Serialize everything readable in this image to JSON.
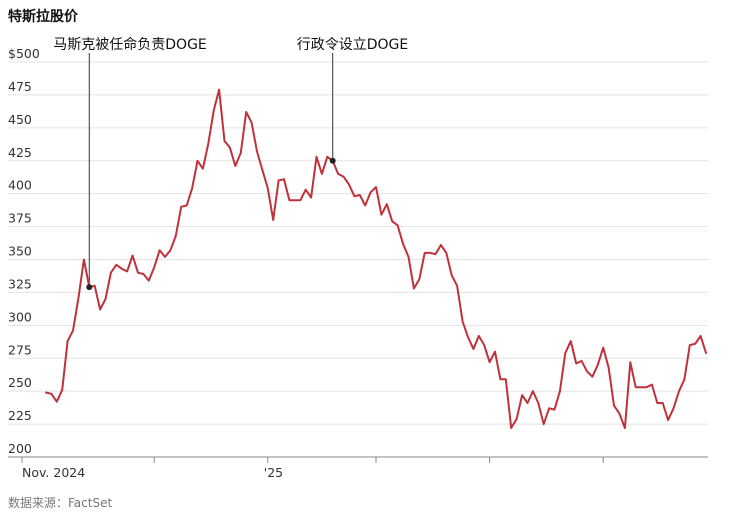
{
  "title": "特斯拉股价",
  "source": "数据来源：FactSet",
  "chart_data": {
    "type": "line",
    "title": "特斯拉股价",
    "xlabel": "",
    "ylabel": "",
    "ylim": [
      200,
      500
    ],
    "yticks": [
      {
        "value": 500,
        "label": "$500"
      },
      {
        "value": 475,
        "label": "475"
      },
      {
        "value": 450,
        "label": "450"
      },
      {
        "value": 425,
        "label": "425"
      },
      {
        "value": 400,
        "label": "400"
      },
      {
        "value": 375,
        "label": "375"
      },
      {
        "value": 350,
        "label": "350"
      },
      {
        "value": 325,
        "label": "325"
      },
      {
        "value": 300,
        "label": "300"
      },
      {
        "value": 275,
        "label": "275"
      },
      {
        "value": 250,
        "label": "250"
      },
      {
        "value": 225,
        "label": "225"
      },
      {
        "value": 200,
        "label": "200"
      }
    ],
    "xlabels": [
      {
        "index": 0,
        "label": "Nov. 2024"
      },
      {
        "index": 41,
        "label": "'25"
      }
    ],
    "xticks_minor": [
      0,
      20,
      41,
      61,
      82,
      103
    ],
    "grid": true,
    "line_color": "#c0313b",
    "series": [
      {
        "values": [
          249,
          248,
          242,
          251,
          288,
          296,
          321,
          350,
          329,
          330,
          312,
          320,
          340,
          346,
          343,
          341,
          353,
          340,
          339,
          334,
          344,
          357,
          352,
          357,
          368,
          390,
          391,
          404,
          425,
          419,
          438,
          463,
          479,
          440,
          435,
          421,
          431,
          462,
          454,
          432,
          418,
          404,
          380,
          410,
          411,
          395,
          395,
          395,
          403,
          397,
          428,
          415,
          428,
          425,
          415,
          413,
          407,
          398,
          399,
          391,
          401,
          405,
          384,
          392,
          379,
          376,
          362,
          352,
          328,
          335,
          355,
          355,
          354,
          361,
          355,
          338,
          330,
          303,
          291,
          282,
          292,
          285,
          272,
          280,
          259,
          259,
          222,
          229,
          247,
          241,
          250,
          241,
          225,
          237,
          236,
          250,
          279,
          288,
          271,
          273,
          265,
          261,
          270,
          283,
          268,
          239,
          233,
          222,
          272,
          253,
          253,
          253,
          255,
          241,
          241,
          228,
          237,
          250,
          259,
          285,
          286,
          292,
          279
        ]
      }
    ],
    "annotations": [
      {
        "text": "马斯克被任命负责DOGE",
        "index": 8,
        "value": 329
      },
      {
        "text": "行政令设立DOGE",
        "index": 53,
        "value": 425
      }
    ]
  }
}
